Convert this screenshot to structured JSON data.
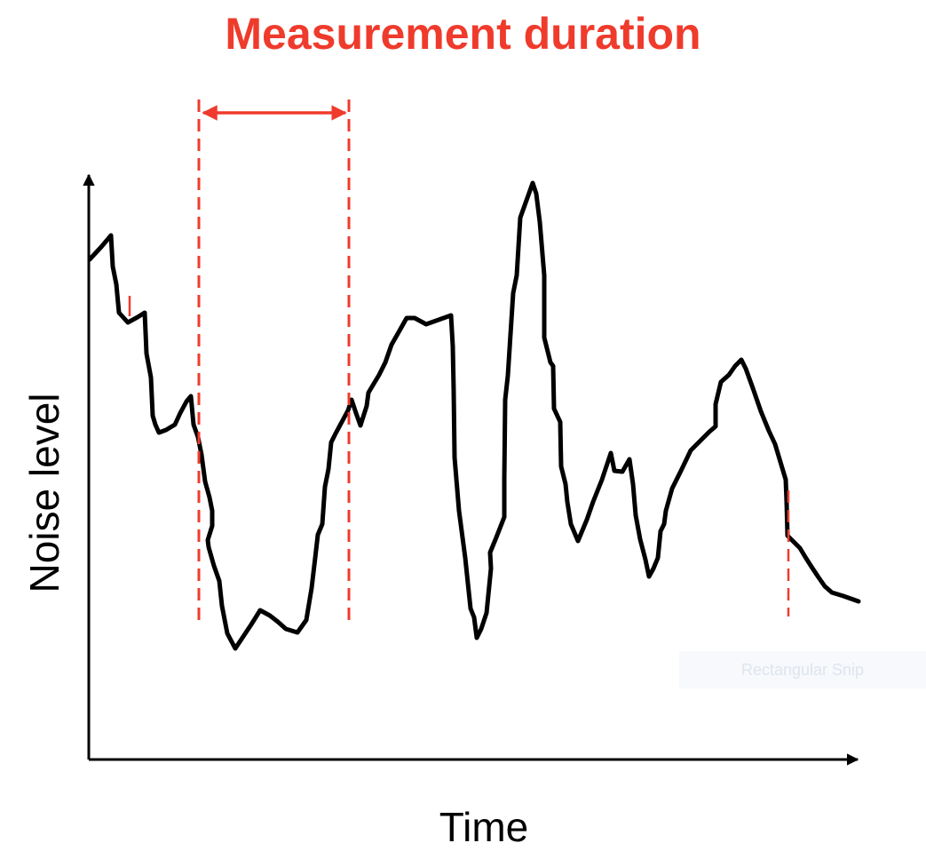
{
  "title": "Measurement duration",
  "x_axis_label": "Time",
  "y_axis_label": "Noise level",
  "overlay_tooltip": "Rectangular Snip",
  "colors": {
    "accent": "#ef3b2c",
    "curve": "#000000",
    "axis": "#000000",
    "overlay_text": "#dfe5ee"
  }
}
